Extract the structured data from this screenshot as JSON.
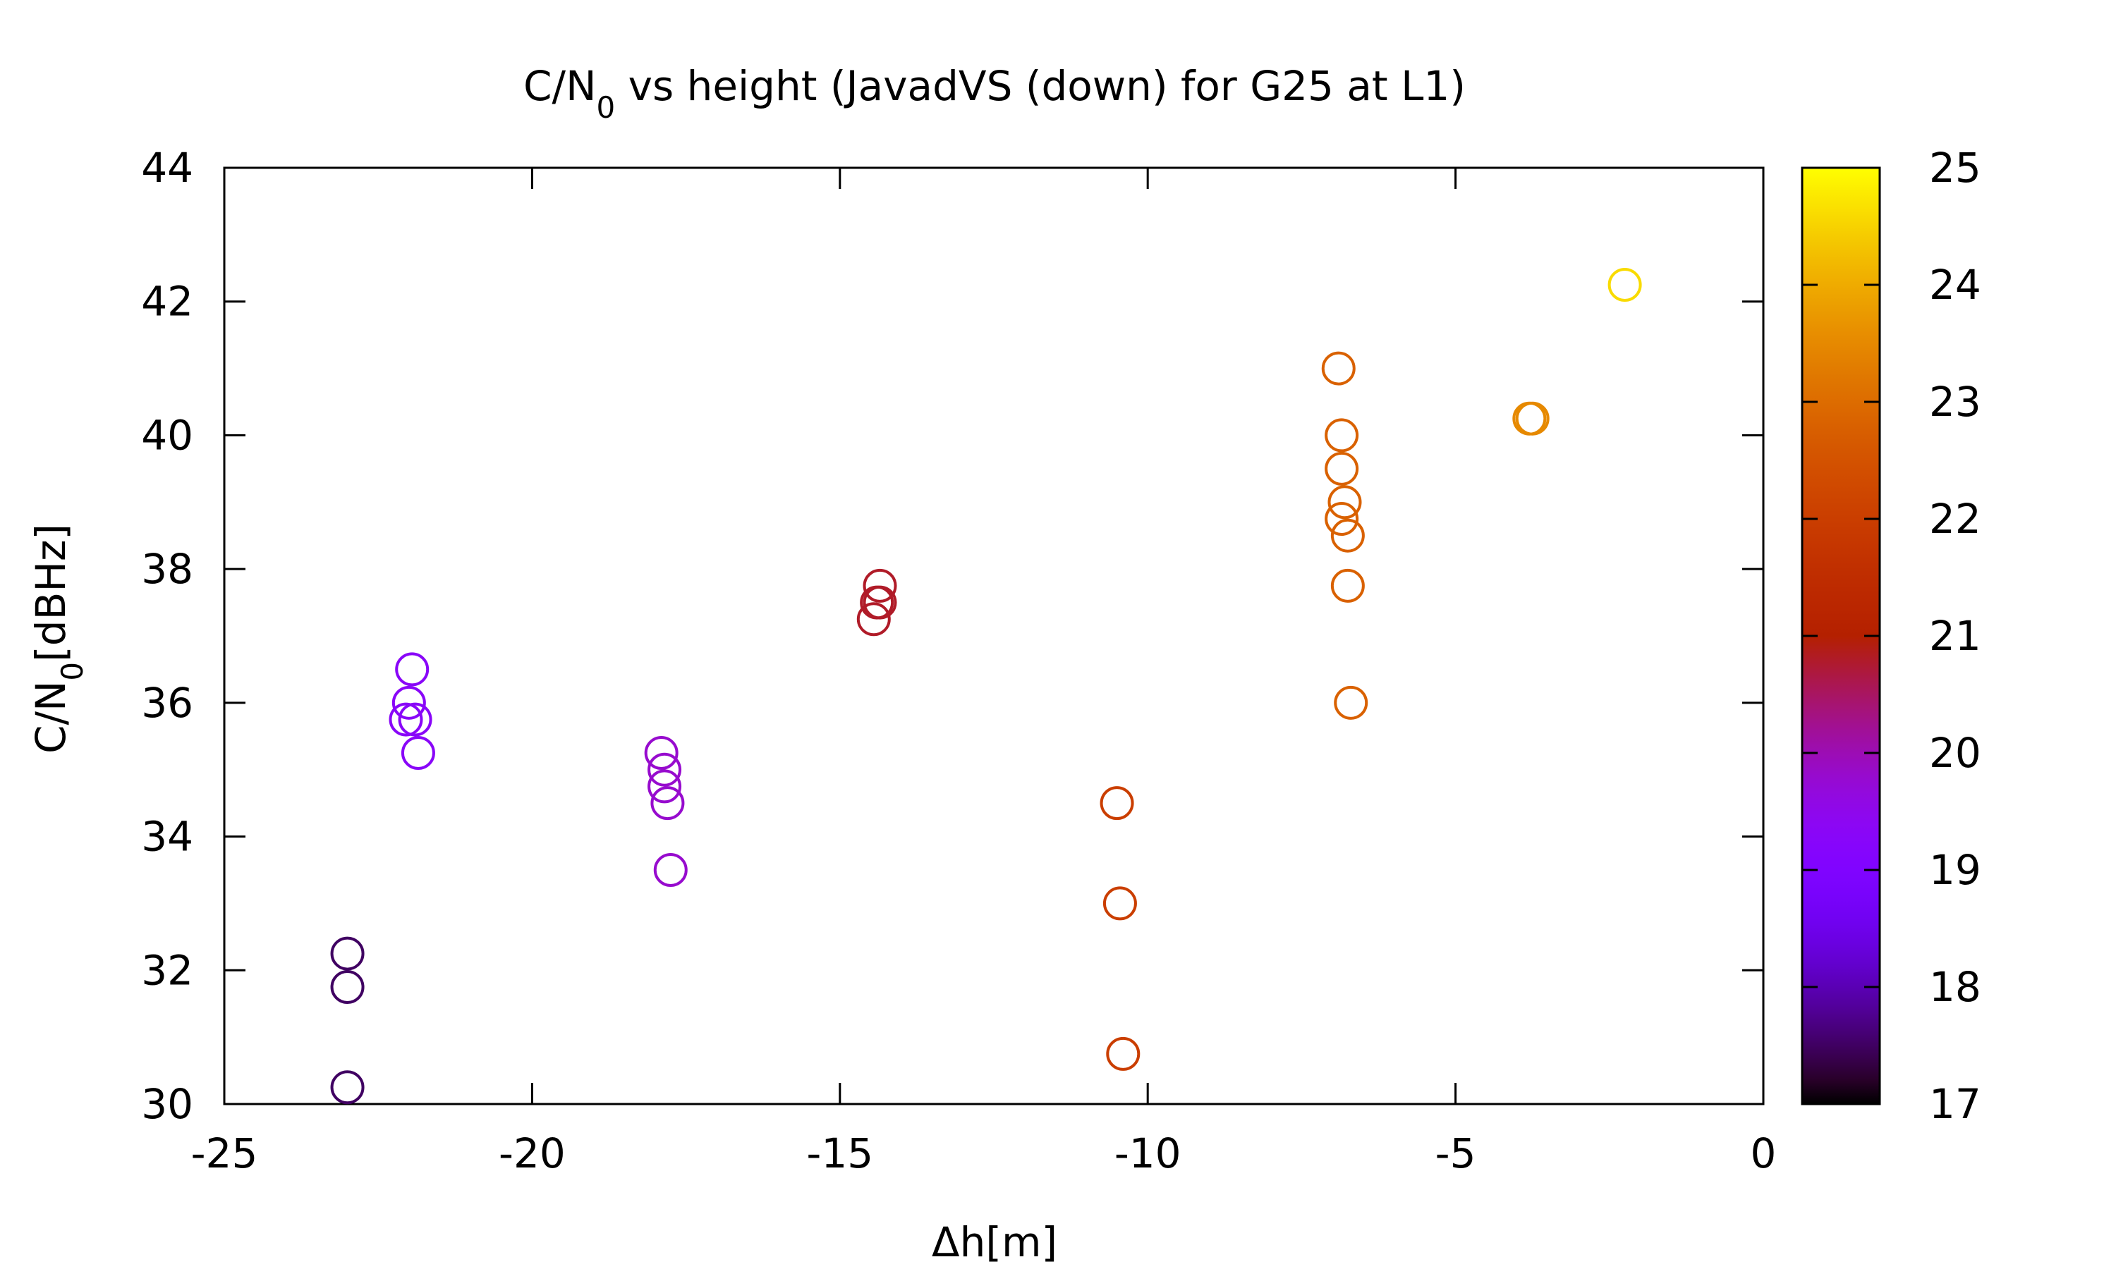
{
  "chart_data": {
    "type": "scatter",
    "title": {
      "prefix": "C/N",
      "subscript": "0",
      "suffix": " vs height (JavadVS (down) for G25 at L1)"
    },
    "xlabel": "Δh[m]",
    "ylabel": {
      "prefix": "C/N",
      "subscript": "0",
      "suffix": "[dBHz]"
    },
    "xlim": [
      -25,
      0
    ],
    "ylim": [
      30,
      44
    ],
    "xticks": [
      -25,
      -20,
      -15,
      -10,
      -5,
      0
    ],
    "yticks": [
      30,
      32,
      34,
      36,
      38,
      40,
      42,
      44
    ],
    "xtick_labels": [
      "-25",
      "-20",
      "-15",
      "-10",
      "-5",
      "0"
    ],
    "ytick_labels": [
      "30",
      "32",
      "34",
      "36",
      "38",
      "40",
      "42",
      "44"
    ],
    "colorbar": {
      "range": [
        17,
        25
      ],
      "ticks": [
        17,
        18,
        19,
        20,
        21,
        22,
        23,
        24,
        25
      ],
      "tick_labels": [
        "17",
        "18",
        "19",
        "20",
        "21",
        "22",
        "23",
        "24",
        "25"
      ],
      "palette": "gnuplot"
    },
    "marker": "open-circle",
    "grid": false,
    "legend": "none",
    "points": [
      {
        "x": -23.0,
        "y": 32.25,
        "c": 17.5
      },
      {
        "x": -23.0,
        "y": 31.75,
        "c": 17.5
      },
      {
        "x": -23.0,
        "y": 30.25,
        "c": 17.5
      },
      {
        "x": -21.95,
        "y": 36.5,
        "c": 19.3
      },
      {
        "x": -22.0,
        "y": 36.0,
        "c": 19.3
      },
      {
        "x": -22.05,
        "y": 35.75,
        "c": 19.3
      },
      {
        "x": -21.9,
        "y": 35.75,
        "c": 19.3
      },
      {
        "x": -21.85,
        "y": 35.25,
        "c": 19.3
      },
      {
        "x": -17.9,
        "y": 35.25,
        "c": 19.8
      },
      {
        "x": -17.85,
        "y": 35.0,
        "c": 19.8
      },
      {
        "x": -17.85,
        "y": 34.75,
        "c": 19.8
      },
      {
        "x": -17.8,
        "y": 34.5,
        "c": 19.8
      },
      {
        "x": -17.75,
        "y": 33.5,
        "c": 19.8
      },
      {
        "x": -14.35,
        "y": 37.75,
        "c": 20.8
      },
      {
        "x": -14.4,
        "y": 37.5,
        "c": 20.8
      },
      {
        "x": -14.35,
        "y": 37.5,
        "c": 20.8
      },
      {
        "x": -14.45,
        "y": 37.25,
        "c": 20.8
      },
      {
        "x": -10.5,
        "y": 34.5,
        "c": 22.0
      },
      {
        "x": -10.45,
        "y": 33.0,
        "c": 22.0
      },
      {
        "x": -10.4,
        "y": 30.75,
        "c": 22.0
      },
      {
        "x": -6.9,
        "y": 41.0,
        "c": 22.8
      },
      {
        "x": -6.85,
        "y": 40.0,
        "c": 22.8
      },
      {
        "x": -6.85,
        "y": 39.5,
        "c": 22.8
      },
      {
        "x": -6.8,
        "y": 39.0,
        "c": 22.8
      },
      {
        "x": -6.85,
        "y": 38.75,
        "c": 22.8
      },
      {
        "x": -6.75,
        "y": 38.5,
        "c": 22.8
      },
      {
        "x": -6.75,
        "y": 37.75,
        "c": 22.8
      },
      {
        "x": -6.7,
        "y": 36.0,
        "c": 22.8
      },
      {
        "x": -3.8,
        "y": 40.25,
        "c": 23.5
      },
      {
        "x": -3.75,
        "y": 40.25,
        "c": 23.5
      },
      {
        "x": -2.25,
        "y": 42.25,
        "c": 24.6
      }
    ]
  }
}
